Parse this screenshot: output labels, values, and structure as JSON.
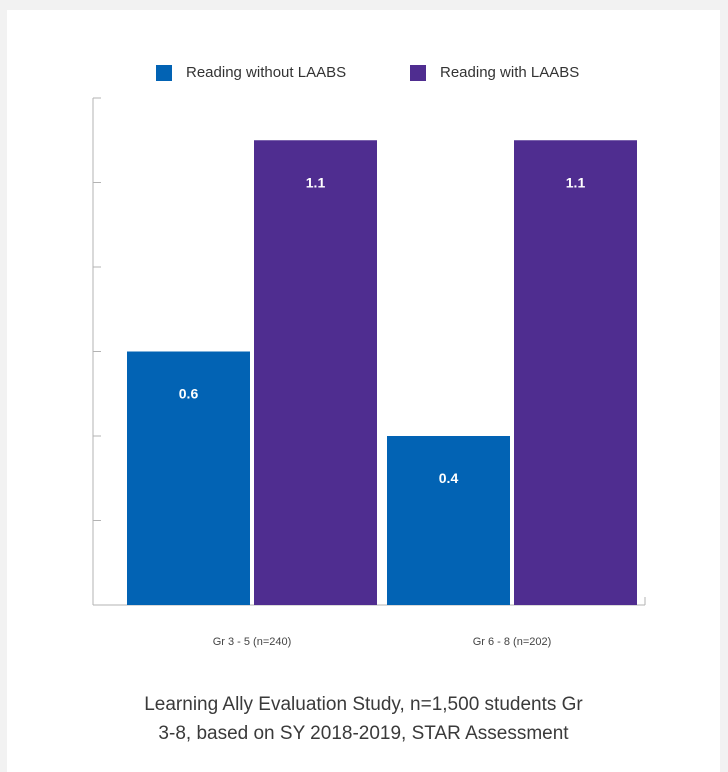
{
  "chart_data": {
    "type": "bar",
    "categories": [
      "Gr 3 - 5 (n=240)",
      "Gr 6 - 8 (n=202)"
    ],
    "series": [
      {
        "name": "Reading without LAABS",
        "values": [
          0.6,
          0.4
        ],
        "color": "#0263b4",
        "labels": [
          "0.6",
          "0.4"
        ]
      },
      {
        "name": "Reading with LAABS",
        "values": [
          1.1,
          1.1
        ],
        "color": "#4f2d90",
        "labels": [
          "1.1",
          "1.1"
        ]
      }
    ],
    "ylim": [
      0,
      1.2
    ],
    "yticks": [
      0.2,
      0.4,
      0.6,
      0.8,
      1.0,
      1.2
    ],
    "ytick_labels_shown": false,
    "grid": false,
    "legend_position": "top-center"
  },
  "caption": {
    "line1": "Learning Ally Evaluation Study, n=1,500 students Gr",
    "line2": "3-8, based on SY 2018-2019, STAR Assessment"
  }
}
